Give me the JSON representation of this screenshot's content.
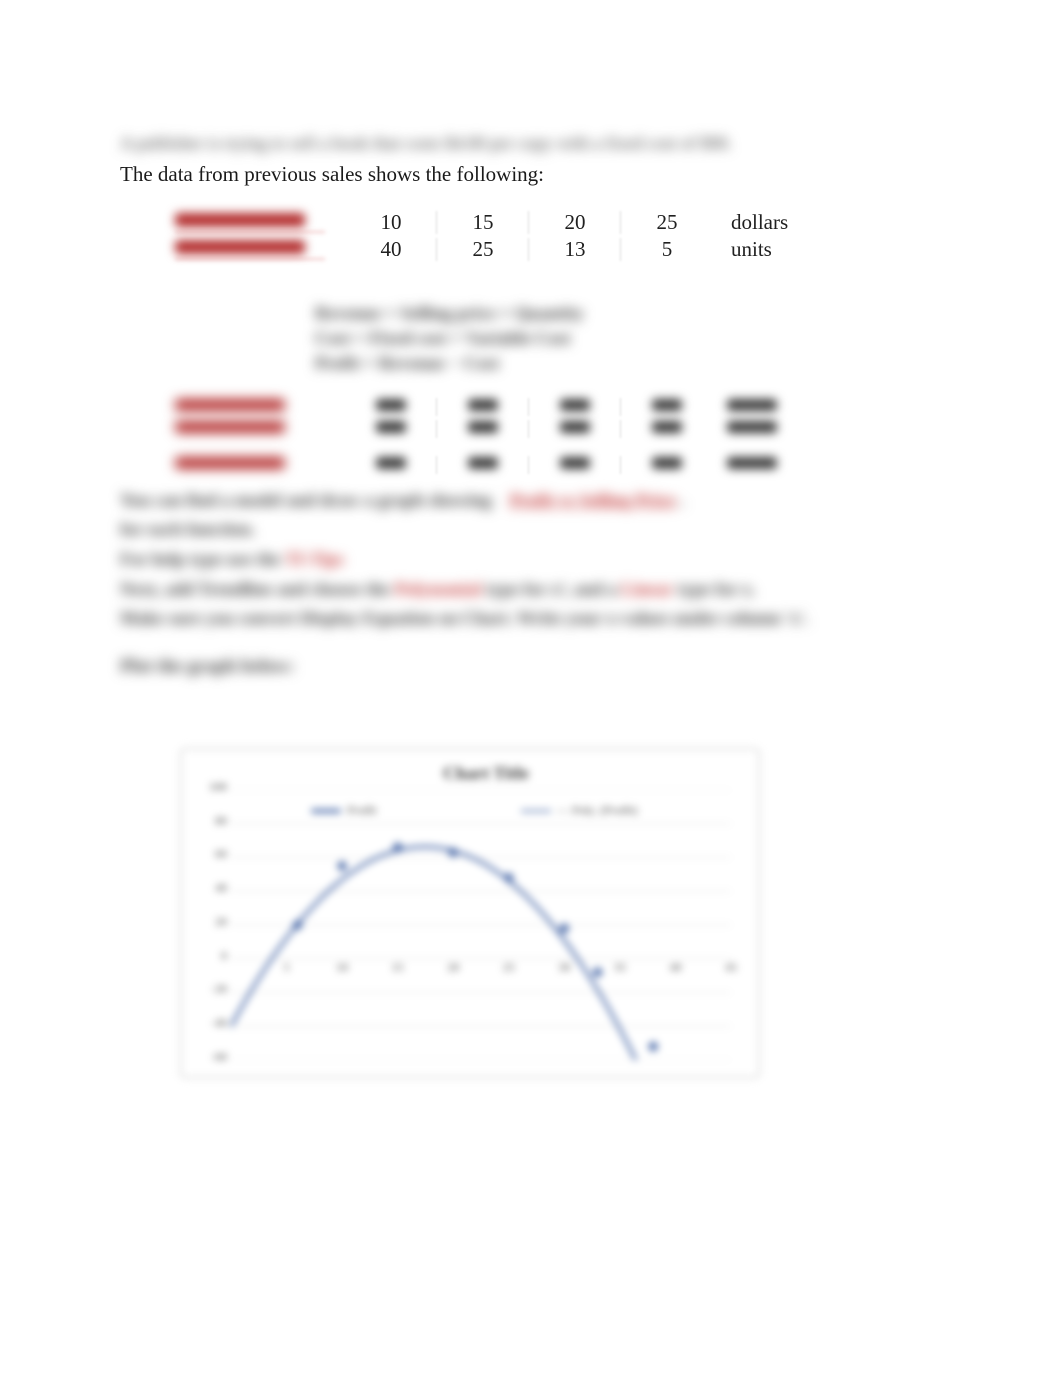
{
  "intro": {
    "line1_blurred": "A publisher is trying to sell a book that costs $4.00 per copy with a fixed cost of $90.",
    "line2_sharp": "The data from previous sales shows the following:"
  },
  "table1": {
    "row_labels_placeholder": [
      "Selling Price ($)",
      "Quantity Sold (q)"
    ],
    "columns": [
      "10",
      "15",
      "20",
      "25"
    ],
    "rows": [
      [
        "10",
        "15",
        "20",
        "25"
      ],
      [
        "40",
        "25",
        "13",
        "5"
      ]
    ],
    "row_units": [
      "dollars",
      "units"
    ]
  },
  "formulas_block_placeholder": [
    "Revenue = Selling price × Quantity",
    "Cost = Fixed cost + Variable Cost",
    "Profit = Revenue − Cost"
  ],
  "table2": {
    "row_labels_placeholder": [
      "Cost",
      "Revenue"
    ],
    "columns_placeholder": [
      "c1",
      "c2",
      "c3",
      "c4"
    ],
    "row_units_placeholder": [
      "dollars",
      "dollars"
    ]
  },
  "table3": {
    "row_labels_placeholder": [
      "Profit"
    ],
    "columns_placeholder": [
      "c1",
      "c2",
      "c3",
      "c4"
    ],
    "row_units_placeholder": [
      "dollars"
    ]
  },
  "paragraph_placeholder": {
    "line1": {
      "pre": "You can find a model and draw a graph showing",
      "link": "Profit vs Selling Price",
      "post": "."
    },
    "line2": "for each function.",
    "line3": {
      "pre": "For help type   use the",
      "red": "   TI-Tips"
    },
    "line4": {
      "pre": "Next, add Trendline and choose the    ",
      "red1": "Polynomial",
      "mid": "  type for x², and a",
      "red2": "  Linear",
      "post": "  type for x."
    },
    "line5": "Make sure you convert Display Equation on Chart. Write your x-values under column 'x'."
  },
  "plot_label_placeholder": "Plot the graph below:",
  "chart": {
    "title": "Chart Title",
    "legend_left": "Profit",
    "legend_right_placeholder": "— Poly. (Profit)",
    "series_color": "#4a6aa8",
    "grid_color": "#e3e3e3",
    "axis_color": "#bfbfbf",
    "background": "#ffffff",
    "y_ticks": [
      -60,
      -40,
      -20,
      0,
      20,
      40,
      60,
      80,
      100
    ],
    "x_ticks": [
      0,
      5,
      10,
      15,
      20,
      25,
      30,
      35,
      40,
      45
    ],
    "xlim": [
      0,
      45
    ],
    "ylim": [
      -60,
      100
    ],
    "points": [
      {
        "x": 6,
        "y": 20
      },
      {
        "x": 10,
        "y": 55
      },
      {
        "x": 15,
        "y": 66
      },
      {
        "x": 20,
        "y": 63
      },
      {
        "x": 25,
        "y": 48
      },
      {
        "x": 30,
        "y": 18
      },
      {
        "x": 33,
        "y": -8
      },
      {
        "x": 38,
        "y": -52
      }
    ],
    "curve_a": -0.35,
    "curve_b": 12.2,
    "curve_c": -40,
    "line_width": 3,
    "marker_size": 5,
    "marker_shape": "diamond"
  }
}
